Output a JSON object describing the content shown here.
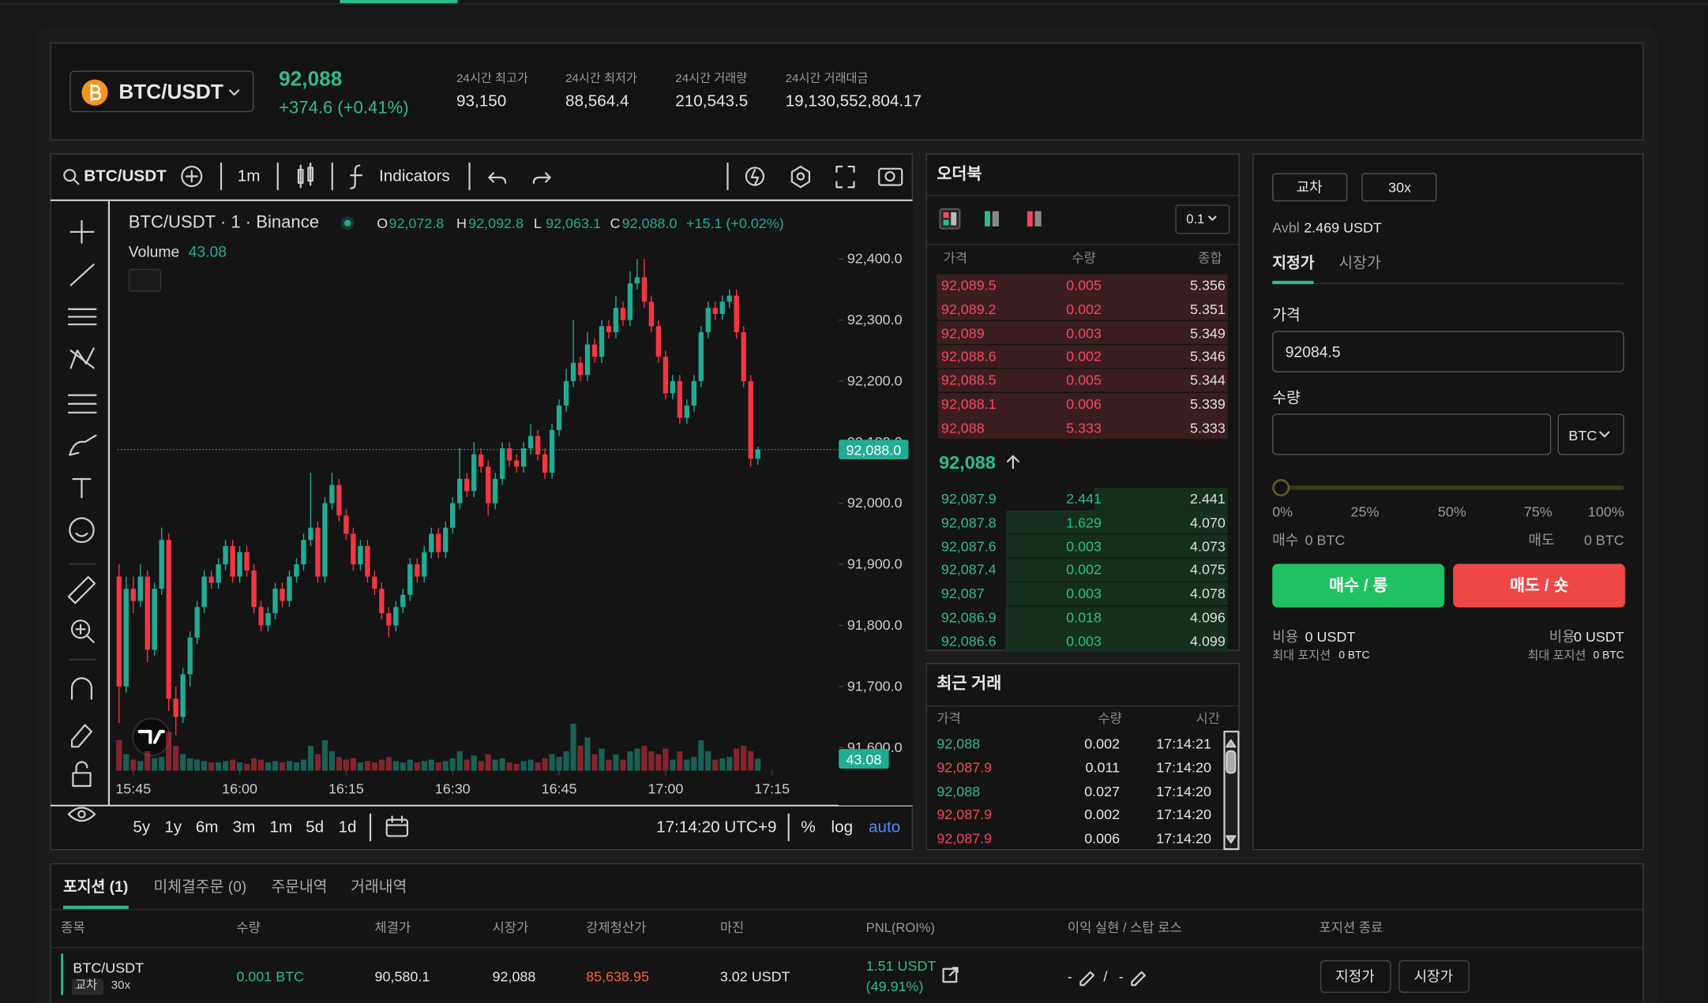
{
  "header": {
    "pair": "BTC/USDT",
    "price": "92,088",
    "change": "+374.6 (+0.41%)",
    "stats": [
      {
        "label": "24시간 최고가",
        "value": "93,150"
      },
      {
        "label": "24시간 최저가",
        "value": "88,564.4"
      },
      {
        "label": "24시간 거래량",
        "value": "210,543.5"
      },
      {
        "label": "24시간 거래대금",
        "value": "19,130,552,804.17"
      }
    ]
  },
  "chart_toolbar": {
    "symbol": "BTC/USDT",
    "interval": "1m",
    "indicators": "Indicators"
  },
  "chart_data": {
    "type": "candlestick",
    "legend": {
      "title": "BTC/USDT · 1 · Binance",
      "ohlc": [
        {
          "label": "O",
          "value": "92,072.8"
        },
        {
          "label": "H",
          "value": "92,092.8"
        },
        {
          "label": "L",
          "value": "92,063.1"
        },
        {
          "label": "C",
          "value": "92,088.0"
        }
      ],
      "change": "+15.1 (+0.02%)",
      "volume_label": "Volume",
      "volume_value": "43.08"
    },
    "last_price_label": "92,088.0",
    "last_volume_label": "43.08",
    "up_color": "#22ab94",
    "down_color": "#f23645",
    "xlim": [
      942.8,
      1044.4
    ],
    "xticks": [
      {
        "value": 945,
        "label": "15:45"
      },
      {
        "value": 960,
        "label": "16:00"
      },
      {
        "value": 975,
        "label": "16:15"
      },
      {
        "value": 990,
        "label": "16:30"
      },
      {
        "value": 1005,
        "label": "16:45"
      },
      {
        "value": 1020,
        "label": "17:00"
      },
      {
        "value": 1035,
        "label": "17:15"
      }
    ],
    "ylim": [
      91562,
      92489
    ],
    "yticks": [
      {
        "value": 91600,
        "label": "91,600.0"
      },
      {
        "value": 91700,
        "label": "91,700.0"
      },
      {
        "value": 91800,
        "label": "91,800.0"
      },
      {
        "value": 91900,
        "label": "91,900.0"
      },
      {
        "value": 92000,
        "label": "92,000.0"
      },
      {
        "value": 92100,
        "label": "92,100.0"
      },
      {
        "value": 92200,
        "label": "92,200.0"
      },
      {
        "value": 92300,
        "label": "92,300.0"
      },
      {
        "value": 92400,
        "label": "92,400.0"
      }
    ],
    "volume_ylim": [
      0,
      440
    ],
    "x": [
      943,
      944,
      945,
      946,
      947,
      948,
      949,
      950,
      951,
      952,
      953,
      954,
      955,
      956,
      957,
      958,
      959,
      960,
      961,
      962,
      963,
      964,
      965,
      966,
      967,
      968,
      969,
      970,
      971,
      972,
      973,
      974,
      975,
      976,
      977,
      978,
      979,
      980,
      981,
      982,
      983,
      984,
      985,
      986,
      987,
      988,
      989,
      990,
      991,
      992,
      993,
      994,
      995,
      996,
      997,
      998,
      999,
      1000,
      1001,
      1002,
      1003,
      1004,
      1005,
      1006,
      1007,
      1008,
      1009,
      1010,
      1011,
      1012,
      1013,
      1014,
      1015,
      1016,
      1017,
      1018,
      1019,
      1020,
      1021,
      1022,
      1023,
      1024,
      1025,
      1026,
      1027,
      1028,
      1029,
      1030,
      1031,
      1032,
      1033
    ],
    "candles": [
      [
        91880,
        91900,
        91640,
        91700,
        110
      ],
      [
        91700,
        91880,
        91690,
        91860,
        60
      ],
      [
        91860,
        91880,
        91820,
        91840,
        40
      ],
      [
        91840,
        91900,
        91830,
        91880,
        35
      ],
      [
        91880,
        91890,
        91740,
        91760,
        70
      ],
      [
        91760,
        91870,
        91750,
        91860,
        45
      ],
      [
        91860,
        91960,
        91850,
        91940,
        50
      ],
      [
        91940,
        91950,
        91660,
        91680,
        140
      ],
      [
        91680,
        91700,
        91620,
        91650,
        90
      ],
      [
        91650,
        91730,
        91640,
        91720,
        60
      ],
      [
        91720,
        91790,
        91700,
        91780,
        45
      ],
      [
        91780,
        91840,
        91770,
        91830,
        40
      ],
      [
        91830,
        91890,
        91820,
        91880,
        35
      ],
      [
        91880,
        91890,
        91860,
        91870,
        30
      ],
      [
        91870,
        91910,
        91860,
        91900,
        30
      ],
      [
        91900,
        91940,
        91890,
        91930,
        35
      ],
      [
        91930,
        91940,
        91870,
        91880,
        40
      ],
      [
        91880,
        91930,
        91870,
        91920,
        30
      ],
      [
        91920,
        91930,
        91880,
        91890,
        25
      ],
      [
        91890,
        91900,
        91820,
        91830,
        45
      ],
      [
        91830,
        91840,
        91790,
        91800,
        40
      ],
      [
        91800,
        91830,
        91790,
        91820,
        30
      ],
      [
        91820,
        91870,
        91810,
        91860,
        35
      ],
      [
        91860,
        91870,
        91830,
        91840,
        30
      ],
      [
        91840,
        91890,
        91830,
        91880,
        35
      ],
      [
        91880,
        91910,
        91870,
        91900,
        30
      ],
      [
        91900,
        91950,
        91890,
        91940,
        40
      ],
      [
        91940,
        92050,
        91930,
        91960,
        90
      ],
      [
        91960,
        91970,
        91870,
        91880,
        60
      ],
      [
        91880,
        92010,
        91870,
        92000,
        110
      ],
      [
        92000,
        92050,
        91990,
        92030,
        70
      ],
      [
        92030,
        92040,
        91970,
        91980,
        50
      ],
      [
        91980,
        91990,
        91940,
        91950,
        40
      ],
      [
        91950,
        91960,
        91890,
        91900,
        45
      ],
      [
        91900,
        91940,
        91890,
        91930,
        30
      ],
      [
        91930,
        91940,
        91870,
        91880,
        35
      ],
      [
        91880,
        91890,
        91850,
        91860,
        30
      ],
      [
        91860,
        91870,
        91810,
        91820,
        40
      ],
      [
        91820,
        91830,
        91780,
        91800,
        50
      ],
      [
        91800,
        91840,
        91790,
        91830,
        35
      ],
      [
        91830,
        91860,
        91820,
        91850,
        30
      ],
      [
        91850,
        91910,
        91840,
        91900,
        40
      ],
      [
        91900,
        91910,
        91870,
        91880,
        30
      ],
      [
        91880,
        91930,
        91870,
        91920,
        35
      ],
      [
        91920,
        91960,
        91910,
        91950,
        40
      ],
      [
        91950,
        91960,
        91910,
        91920,
        30
      ],
      [
        91920,
        91970,
        91910,
        91960,
        35
      ],
      [
        91960,
        92010,
        91950,
        92000,
        45
      ],
      [
        92000,
        92090,
        91990,
        92040,
        70
      ],
      [
        92040,
        92050,
        92010,
        92020,
        40
      ],
      [
        92020,
        92100,
        92010,
        92080,
        55
      ],
      [
        92080,
        92090,
        92050,
        92060,
        35
      ],
      [
        92060,
        92070,
        91980,
        92000,
        60
      ],
      [
        92000,
        92050,
        91990,
        92040,
        40
      ],
      [
        92040,
        92100,
        92030,
        92090,
        45
      ],
      [
        92090,
        92100,
        92060,
        92070,
        30
      ],
      [
        92070,
        92080,
        92050,
        92060,
        25
      ],
      [
        92060,
        92100,
        92050,
        92090,
        35
      ],
      [
        92090,
        92130,
        92080,
        92110,
        40
      ],
      [
        92110,
        92120,
        92070,
        92080,
        30
      ],
      [
        92080,
        92090,
        92040,
        92050,
        45
      ],
      [
        92050,
        92130,
        92040,
        92120,
        60
      ],
      [
        92120,
        92170,
        92110,
        92160,
        50
      ],
      [
        92160,
        92220,
        92150,
        92200,
        70
      ],
      [
        92200,
        92300,
        92190,
        92230,
        170
      ],
      [
        92230,
        92240,
        92200,
        92210,
        90
      ],
      [
        92210,
        92280,
        92200,
        92260,
        120
      ],
      [
        92260,
        92270,
        92230,
        92240,
        60
      ],
      [
        92240,
        92300,
        92230,
        92290,
        80
      ],
      [
        92290,
        92300,
        92270,
        92280,
        40
      ],
      [
        92280,
        92340,
        92270,
        92320,
        60
      ],
      [
        92320,
        92330,
        92290,
        92300,
        40
      ],
      [
        92300,
        92380,
        92290,
        92360,
        70
      ],
      [
        92360,
        92400,
        92350,
        92370,
        80
      ],
      [
        92370,
        92400,
        92320,
        92330,
        90
      ],
      [
        92330,
        92340,
        92280,
        92290,
        70
      ],
      [
        92290,
        92300,
        92230,
        92240,
        60
      ],
      [
        92240,
        92250,
        92170,
        92180,
        80
      ],
      [
        92180,
        92210,
        92170,
        92200,
        40
      ],
      [
        92200,
        92210,
        92130,
        92140,
        70
      ],
      [
        92140,
        92170,
        92130,
        92160,
        40
      ],
      [
        92160,
        92210,
        92150,
        92200,
        50
      ],
      [
        92200,
        92290,
        92190,
        92280,
        110
      ],
      [
        92280,
        92330,
        92270,
        92320,
        70
      ],
      [
        92320,
        92330,
        92300,
        92310,
        40
      ],
      [
        92310,
        92340,
        92300,
        92330,
        45
      ],
      [
        92330,
        92350,
        92320,
        92340,
        50
      ],
      [
        92340,
        92350,
        92270,
        92280,
        80
      ],
      [
        92280,
        92290,
        92190,
        92200,
        90
      ],
      [
        92200,
        92210,
        92060,
        92072.8,
        70
      ],
      [
        92072.8,
        92092.8,
        92063.1,
        92088,
        43.08
      ]
    ]
  },
  "chart_footer": {
    "ranges": [
      "5y",
      "1y",
      "6m",
      "3m",
      "1m",
      "5d",
      "1d"
    ],
    "time": "17:14:20 UTC+9",
    "percent": "%",
    "log": "log",
    "auto": "auto"
  },
  "order_book": {
    "title": "오더북",
    "step": "0.1",
    "headers": [
      "가격",
      "수량",
      "종합"
    ],
    "asks": [
      [
        "92,089.5",
        "0.005",
        "5.356"
      ],
      [
        "92,089.2",
        "0.002",
        "5.351"
      ],
      [
        "92,089",
        "0.003",
        "5.349"
      ],
      [
        "92,088.6",
        "0.002",
        "5.346"
      ],
      [
        "92,088.5",
        "0.005",
        "5.344"
      ],
      [
        "92,088.1",
        "0.006",
        "5.339"
      ],
      [
        "92,088",
        "5.333",
        "5.333"
      ]
    ],
    "mid": "92,088",
    "bids": [
      [
        "92,087.9",
        "2.441",
        "2.441"
      ],
      [
        "92,087.8",
        "1.629",
        "4.070"
      ],
      [
        "92,087.6",
        "0.003",
        "4.073"
      ],
      [
        "92,087.4",
        "0.002",
        "4.075"
      ],
      [
        "92,087",
        "0.003",
        "4.078"
      ],
      [
        "92,086.9",
        "0.018",
        "4.096"
      ],
      [
        "92,086.6",
        "0.003",
        "4.099"
      ]
    ],
    "ask_color": "#f6465d",
    "bid_color": "#2ebd85"
  },
  "recent_trades": {
    "title": "최근 거래",
    "headers": [
      "가격",
      "수량",
      "시간"
    ],
    "rows": [
      {
        "price": "92,088",
        "qty": "0.002",
        "time": "17:14:21",
        "color": "#2ebd85"
      },
      {
        "price": "92,087.9",
        "qty": "0.011",
        "time": "17:14:20",
        "color": "#f6465d"
      },
      {
        "price": "92,088",
        "qty": "0.027",
        "time": "17:14:20",
        "color": "#2ebd85"
      },
      {
        "price": "92,087.9",
        "qty": "0.002",
        "time": "17:14:20",
        "color": "#f6465d"
      },
      {
        "price": "92,087.9",
        "qty": "0.006",
        "time": "17:14:20",
        "color": "#f6465d"
      }
    ]
  },
  "order_form": {
    "margin_mode": "교차",
    "leverage": "30x",
    "avbl_label": "Avbl",
    "avbl": "2.469 USDT",
    "tabs": [
      "지정가",
      "시장가"
    ],
    "price_label": "가격",
    "price": "92084.5",
    "qty_label": "수량",
    "unit": "BTC",
    "slider_labels": [
      "0%",
      "25%",
      "50%",
      "75%",
      "100%"
    ],
    "buy_label": "매수",
    "buy_amount": "0 BTC",
    "sell_label": "매도",
    "sell_amount": "0 BTC",
    "buy_button": "매수 / 롱",
    "sell_button": "매도 / 숏",
    "cost_label": "비용",
    "buy_cost": "0 USDT",
    "sell_cost": "0 USDT",
    "max_label": "최대 포지션",
    "buy_max": "0 BTC",
    "sell_max": "0 BTC"
  },
  "positions": {
    "tabs": [
      "포지션 (1)",
      "미체결주문 (0)",
      "주문내역",
      "거래내역"
    ],
    "headers": [
      "종목",
      "수량",
      "체결가",
      "시장가",
      "강제청산가",
      "마진",
      "PNL(ROI%)",
      "이익 실현 / 스탑 로스",
      "포지션 종료"
    ],
    "row": {
      "symbol": "BTC/USDT",
      "mode": "교차",
      "leverage": "30x",
      "qty": "0.001 BTC",
      "entry": "90,580.1",
      "mark": "92,088",
      "liq": "85,638.95",
      "margin": "3.02 USDT",
      "pnl": "1.51 USDT",
      "roi": "(49.91%)",
      "tp": "-",
      "sep": "/",
      "sl": "-",
      "close_limit": "지정가",
      "close_market": "시장가"
    }
  }
}
